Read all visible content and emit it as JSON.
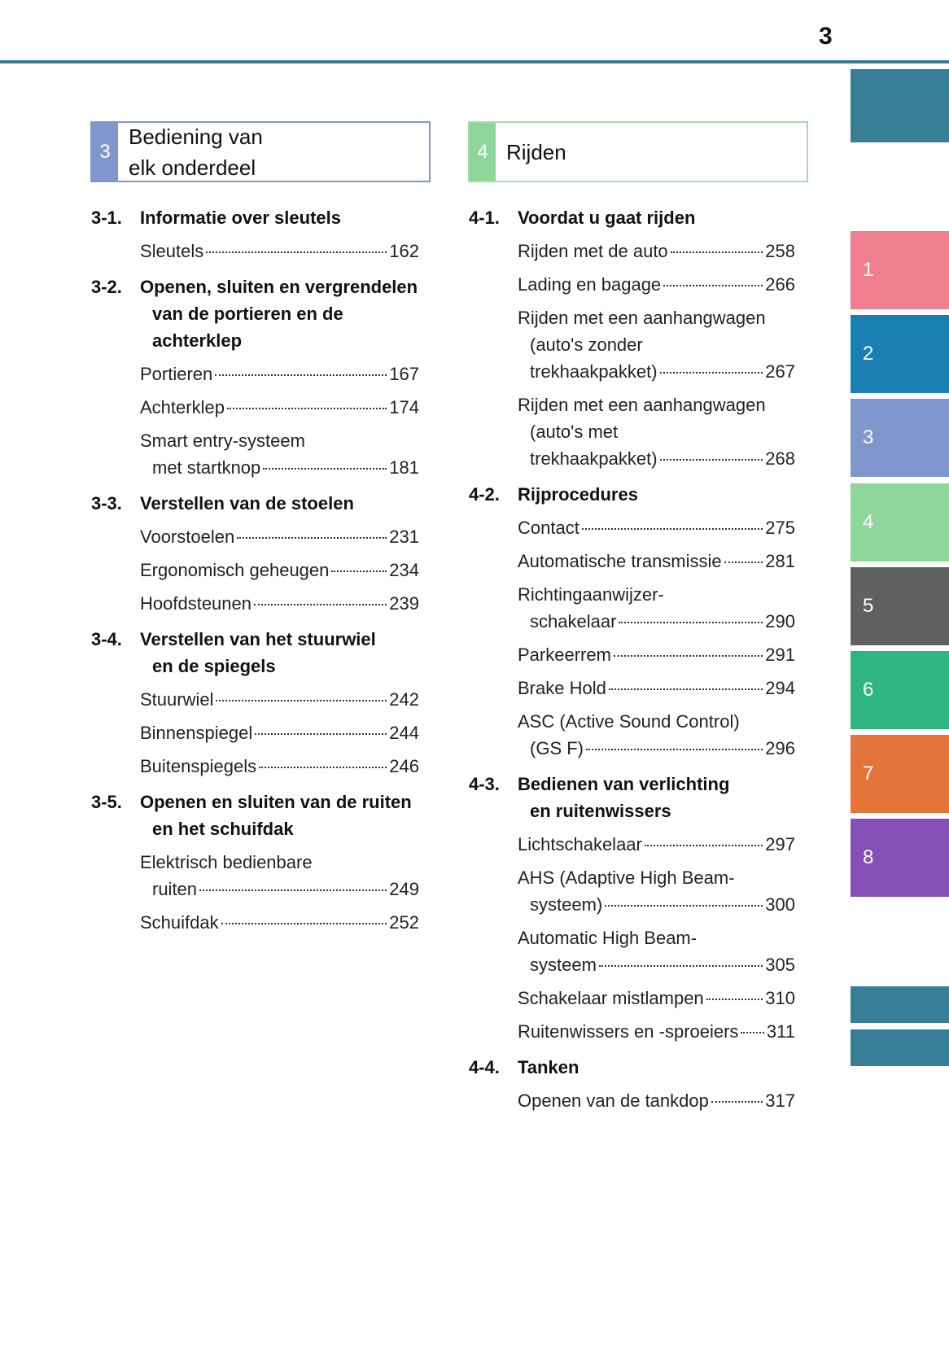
{
  "page_number": "3",
  "colors": {
    "accent": "#367f97",
    "tab_1": "#ef7f8c",
    "tab_2": "#1a7fb0",
    "tab_3": "#7f97cc",
    "tab_4": "#8fd69a",
    "tab_5": "#606060",
    "tab_6": "#2fb584",
    "tab_7": "#e5743a",
    "tab_8": "#8450b5"
  },
  "tabs": [
    "1",
    "2",
    "3",
    "4",
    "5",
    "6",
    "7",
    "8"
  ],
  "chapters": [
    {
      "number": "3",
      "title_lines": [
        "Bediening van",
        "elk onderdeel"
      ],
      "sections": [
        {
          "no": "3-1.",
          "title": [
            "Informatie over sleutels"
          ],
          "entries": [
            {
              "lines": [
                "Sleutels"
              ],
              "page": "162"
            }
          ]
        },
        {
          "no": "3-2.",
          "title": [
            "Openen, sluiten en vergrendelen",
            "van de portieren en de",
            "achterklep"
          ],
          "entries": [
            {
              "lines": [
                "Portieren"
              ],
              "page": "167"
            },
            {
              "lines": [
                "Achterklep"
              ],
              "page": "174"
            },
            {
              "lines": [
                "Smart entry-systeem",
                "met startknop"
              ],
              "page": "181"
            }
          ]
        },
        {
          "no": "3-3.",
          "title": [
            "Verstellen van de stoelen"
          ],
          "entries": [
            {
              "lines": [
                "Voorstoelen"
              ],
              "page": "231"
            },
            {
              "lines": [
                "Ergonomisch geheugen"
              ],
              "page": "234"
            },
            {
              "lines": [
                "Hoofdsteunen"
              ],
              "page": "239"
            }
          ]
        },
        {
          "no": "3-4.",
          "title": [
            "Verstellen van het stuurwiel",
            "en de spiegels"
          ],
          "entries": [
            {
              "lines": [
                "Stuurwiel"
              ],
              "page": "242"
            },
            {
              "lines": [
                "Binnenspiegel"
              ],
              "page": "244"
            },
            {
              "lines": [
                "Buitenspiegels"
              ],
              "page": "246"
            }
          ]
        },
        {
          "no": "3-5.",
          "title": [
            "Openen en sluiten van de ruiten",
            "en het schuifdak"
          ],
          "entries": [
            {
              "lines": [
                "Elektrisch bedienbare",
                "ruiten"
              ],
              "page": "249"
            },
            {
              "lines": [
                "Schuifdak"
              ],
              "page": "252"
            }
          ]
        }
      ]
    },
    {
      "number": "4",
      "title_lines": [
        "Rijden"
      ],
      "sections": [
        {
          "no": "4-1.",
          "title": [
            "Voordat u gaat rijden"
          ],
          "entries": [
            {
              "lines": [
                "Rijden met de auto"
              ],
              "page": "258"
            },
            {
              "lines": [
                "Lading en bagage"
              ],
              "page": "266"
            },
            {
              "lines": [
                "Rijden met een aanhangwagen",
                "(auto's zonder",
                "trekhaakpakket)"
              ],
              "page": "267"
            },
            {
              "lines": [
                "Rijden met een aanhangwagen",
                "(auto's met",
                "trekhaakpakket)"
              ],
              "page": "268"
            }
          ]
        },
        {
          "no": "4-2.",
          "title": [
            "Rijprocedures"
          ],
          "entries": [
            {
              "lines": [
                "Contact"
              ],
              "page": "275"
            },
            {
              "lines": [
                "Automatische transmissie"
              ],
              "page": "281"
            },
            {
              "lines": [
                "Richtingaanwijzer-",
                "schakelaar"
              ],
              "page": "290"
            },
            {
              "lines": [
                "Parkeerrem"
              ],
              "page": "291"
            },
            {
              "lines": [
                "Brake Hold"
              ],
              "page": "294"
            },
            {
              "lines": [
                "ASC (Active Sound Control)",
                "(GS F)"
              ],
              "page": "296"
            }
          ]
        },
        {
          "no": "4-3.",
          "title": [
            "Bedienen van verlichting",
            "en ruitenwissers"
          ],
          "entries": [
            {
              "lines": [
                "Lichtschakelaar"
              ],
              "page": "297"
            },
            {
              "lines": [
                "AHS (Adaptive High Beam-",
                "systeem)"
              ],
              "page": "300"
            },
            {
              "lines": [
                "Automatic High Beam-",
                "systeem"
              ],
              "page": "305"
            },
            {
              "lines": [
                "Schakelaar mistlampen"
              ],
              "page": "310"
            },
            {
              "lines": [
                "Ruitenwissers en -sproeiers"
              ],
              "page": "311"
            }
          ]
        },
        {
          "no": "4-4.",
          "title": [
            "Tanken"
          ],
          "entries": [
            {
              "lines": [
                "Openen van de tankdop"
              ],
              "page": "317"
            }
          ]
        }
      ]
    }
  ]
}
